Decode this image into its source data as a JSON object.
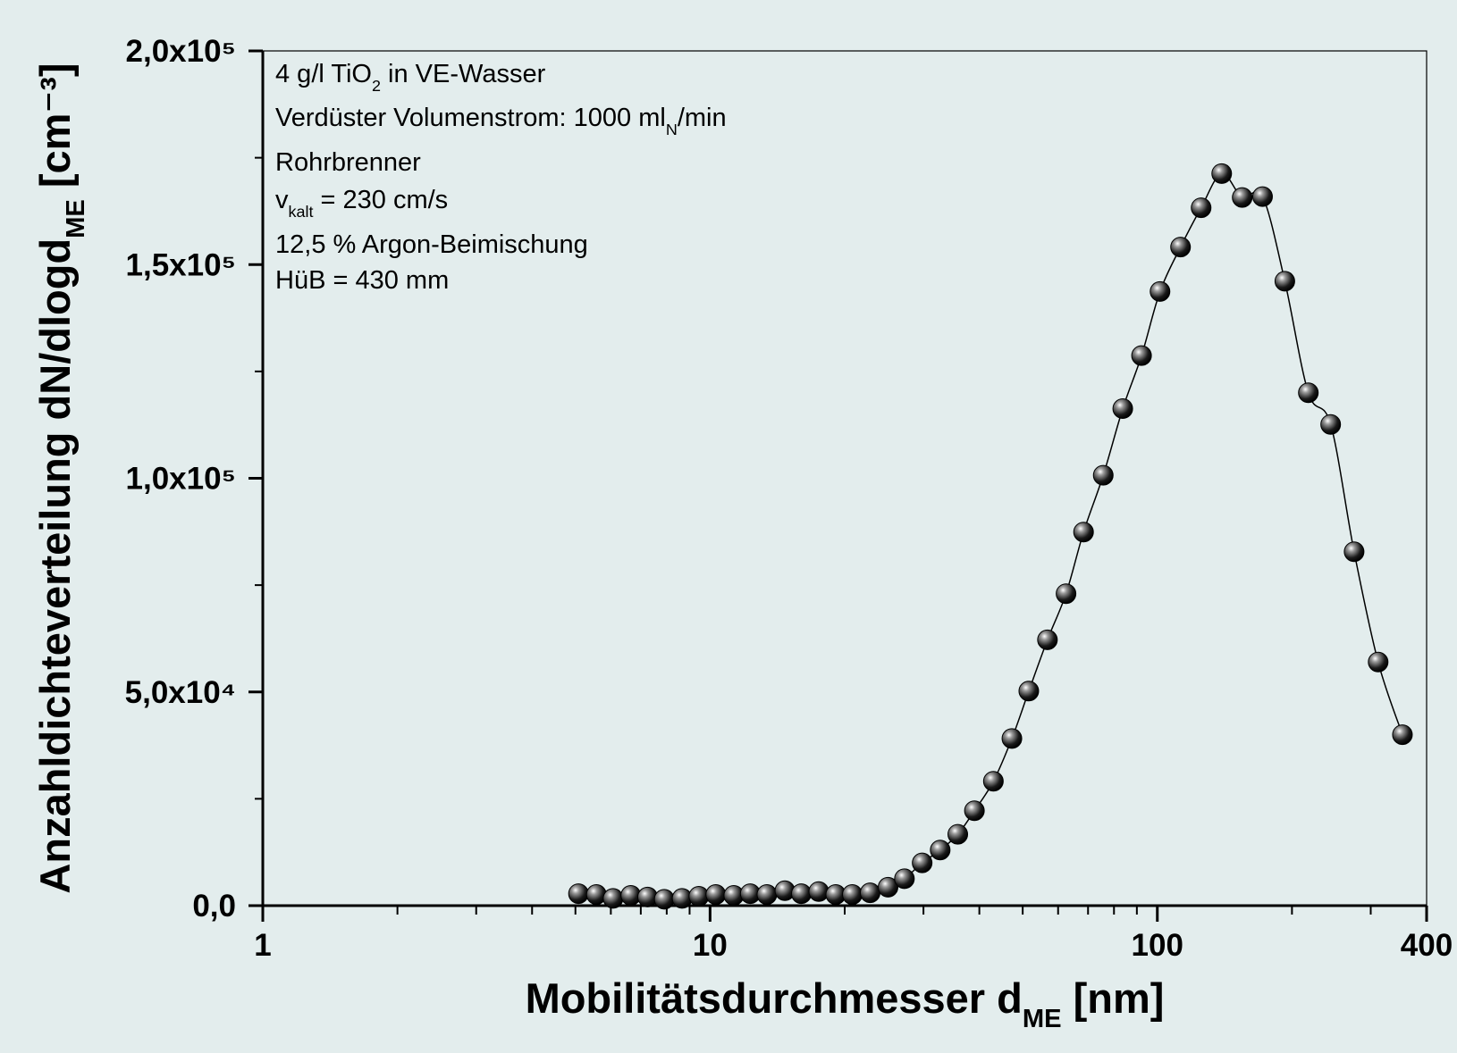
{
  "chart_data": {
    "type": "scatter-line",
    "annotations": [
      [
        {
          "text": "4 g/l TiO"
        },
        {
          "sub": "2"
        },
        {
          "text": " in VE-Wasser"
        }
      ],
      [
        {
          "text": "Verdüster Volumenstrom: 1000 ml"
        },
        {
          "sub": "N"
        },
        {
          "text": "/min"
        }
      ],
      [
        {
          "text": "Rohrbrenner"
        }
      ],
      [
        {
          "text": "v"
        },
        {
          "sub": "kalt"
        },
        {
          "text": " = 230 cm/s"
        }
      ],
      [
        {
          "text": "12,5 % Argon-Beimischung"
        }
      ],
      [
        {
          "text": "HüB = 430 mm"
        }
      ]
    ],
    "xlabel": [
      {
        "text": "Mobilitätsdurchmesser d"
      },
      {
        "sub": "ME"
      },
      {
        "text": " [nm]"
      }
    ],
    "ylabel": [
      {
        "text": "Anzahldichteverteilung dN/dlogd"
      },
      {
        "sub": "ME"
      },
      {
        "text": " [cm⁻³]"
      }
    ],
    "xscale": "log",
    "xlim": [
      1,
      400
    ],
    "xticks": [
      1,
      10,
      100,
      400
    ],
    "xminorticks": [
      2,
      3,
      4,
      5,
      6,
      7,
      8,
      9,
      20,
      30,
      40,
      50,
      60,
      70,
      80,
      90,
      200,
      300
    ],
    "ylim": [
      0,
      200000
    ],
    "yticks": [
      {
        "value": 0,
        "label": "0,0"
      },
      {
        "value": 50000,
        "label": "5,0x10⁴"
      },
      {
        "value": 100000,
        "label": "1,0x10⁵"
      },
      {
        "value": 150000,
        "label": "1,5x10⁵"
      },
      {
        "value": 200000,
        "label": "2,0x10⁵"
      }
    ],
    "yminorticks": [
      25000,
      75000,
      125000,
      175000
    ],
    "series": [
      {
        "color": "#000000",
        "x": [
          5.08,
          5.57,
          6.07,
          6.65,
          7.25,
          7.9,
          8.66,
          9.44,
          10.3,
          11.3,
          12.3,
          13.4,
          14.7,
          16.0,
          17.5,
          19.1,
          20.8,
          22.8,
          25.0,
          27.2,
          29.8,
          32.7,
          35.8,
          39.0,
          43.0,
          47.3,
          51.6,
          56.8,
          62.5,
          68.4,
          75.7,
          83.7,
          92.2,
          101.4,
          112.7,
          125.3,
          139.3,
          154.8,
          171.9,
          192.8,
          217.6,
          244.1,
          275.4,
          311.7,
          353.2
        ],
        "values": [
          2800,
          2600,
          1700,
          2400,
          2000,
          1500,
          1700,
          2200,
          2600,
          2400,
          2800,
          2600,
          3500,
          2800,
          3300,
          2600,
          2600,
          3000,
          4300,
          6300,
          10000,
          13000,
          16700,
          22200,
          29100,
          39100,
          50200,
          62200,
          73000,
          87400,
          100700,
          116300,
          128700,
          143700,
          154100,
          163300,
          171300,
          165700,
          165900,
          146100,
          120000,
          112600,
          82800,
          57000,
          40000
        ]
      }
    ]
  }
}
